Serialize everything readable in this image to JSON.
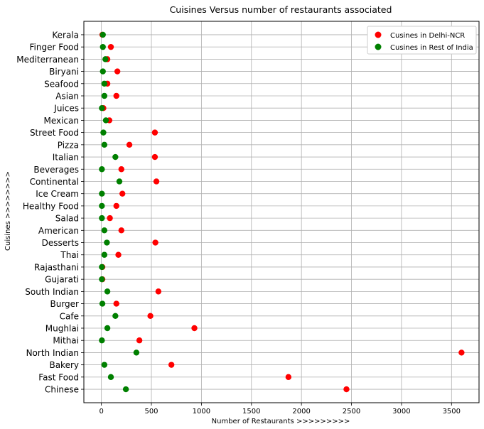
{
  "chart_data": {
    "type": "scatter",
    "title": "Cuisines Versus number of restaurants associated",
    "xlabel": "Number of Restaurants >>>>>>>>>",
    "ylabel": "Cuisines >>>>>>>>",
    "xlim": [
      -175,
      3775
    ],
    "x_ticks": [
      "0",
      "500",
      "1000",
      "1500",
      "2000",
      "2500",
      "3000",
      "3500"
    ],
    "grid": true,
    "legend_position": "top-right",
    "categories": [
      "Chinese",
      "Fast Food",
      "Bakery",
      "North Indian",
      "Mithai",
      "Mughlai",
      "Cafe",
      "Burger",
      "South Indian",
      "Gujarati",
      "Rajasthani",
      "Thai",
      "Desserts",
      "American",
      "Salad",
      "Healthy Food",
      "Ice Cream",
      "Continental",
      "Beverages",
      "Italian",
      "Pizza",
      "Street Food",
      "Mexican",
      "Juices",
      "Asian",
      "Seafood",
      "Biryani",
      "Mediterranean",
      "Finger Food",
      "Kerala"
    ],
    "series": [
      {
        "name": "Cusines in Delhi-NCR",
        "color": "#ff0000",
        "values": [
          2450,
          1870,
          700,
          3600,
          380,
          930,
          490,
          150,
          570,
          10,
          10,
          170,
          540,
          200,
          85,
          150,
          210,
          550,
          200,
          535,
          280,
          535,
          80,
          20,
          150,
          60,
          160,
          60,
          95,
          10
        ]
      },
      {
        "name": "Cusines in Rest of India",
        "color": "#008000",
        "values": [
          245,
          95,
          30,
          350,
          5,
          60,
          140,
          10,
          60,
          5,
          5,
          30,
          55,
          30,
          5,
          5,
          5,
          180,
          5,
          140,
          30,
          20,
          45,
          5,
          30,
          30,
          15,
          40,
          15,
          15
        ]
      }
    ]
  }
}
